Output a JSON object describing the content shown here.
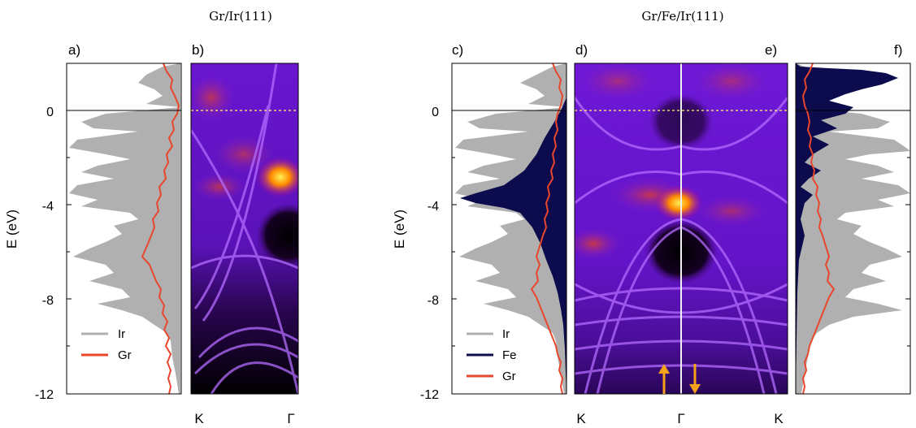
{
  "titles": {
    "left": "Gr/Ir(111)",
    "right": "Gr/Fe/Ir(111)"
  },
  "panel_labels": {
    "a": "a)",
    "b": "b)",
    "c": "c)",
    "d": "d)",
    "e": "e)",
    "f": "f)"
  },
  "ylabel": "E (eV)",
  "yticks": [
    "0",
    "-4",
    "-8",
    "-12"
  ],
  "kpath": {
    "b": [
      "K",
      "Γ"
    ],
    "de": [
      "K",
      "Γ",
      "K"
    ]
  },
  "legend_left": [
    "Ir",
    "Gr"
  ],
  "legend_right": [
    "Ir",
    "Fe",
    "Gr"
  ],
  "colors": {
    "ir": "#b0b0b0",
    "fe": "#0b0b4d",
    "gr": "#e8462d",
    "arrow": "#f5a21a",
    "fermi": "#ffff66"
  },
  "chart_data": [
    {
      "type": "area",
      "panel": "a",
      "ylabel": "E (eV)",
      "ylim": [
        -12,
        1.9
      ],
      "series": [
        {
          "name": "Ir",
          "desc": "projected density of states, filled gray"
        },
        {
          "name": "Gr",
          "desc": "projected density of states, red line"
        }
      ]
    },
    {
      "type": "heatmap",
      "panel": "b",
      "x_ticks": [
        "K",
        "Γ"
      ],
      "ylim": [
        -12,
        1.9
      ],
      "fermi_level": 0
    },
    {
      "type": "area",
      "panel": "c",
      "ylabel": "E (eV)",
      "ylim": [
        -12,
        1.9
      ],
      "series": [
        {
          "name": "Ir"
        },
        {
          "name": "Fe"
        },
        {
          "name": "Gr"
        }
      ]
    },
    {
      "type": "heatmap",
      "panel": "d/e",
      "x_ticks": [
        "K",
        "Γ",
        "K"
      ],
      "ylim": [
        -12,
        1.9
      ],
      "fermi_level": 0,
      "annotations": [
        "spin up (left half)",
        "spin down (right half)"
      ]
    },
    {
      "type": "area",
      "panel": "f",
      "ylim": [
        -12,
        1.9
      ],
      "series": [
        {
          "name": "Ir"
        },
        {
          "name": "Fe"
        },
        {
          "name": "Gr"
        }
      ]
    }
  ]
}
